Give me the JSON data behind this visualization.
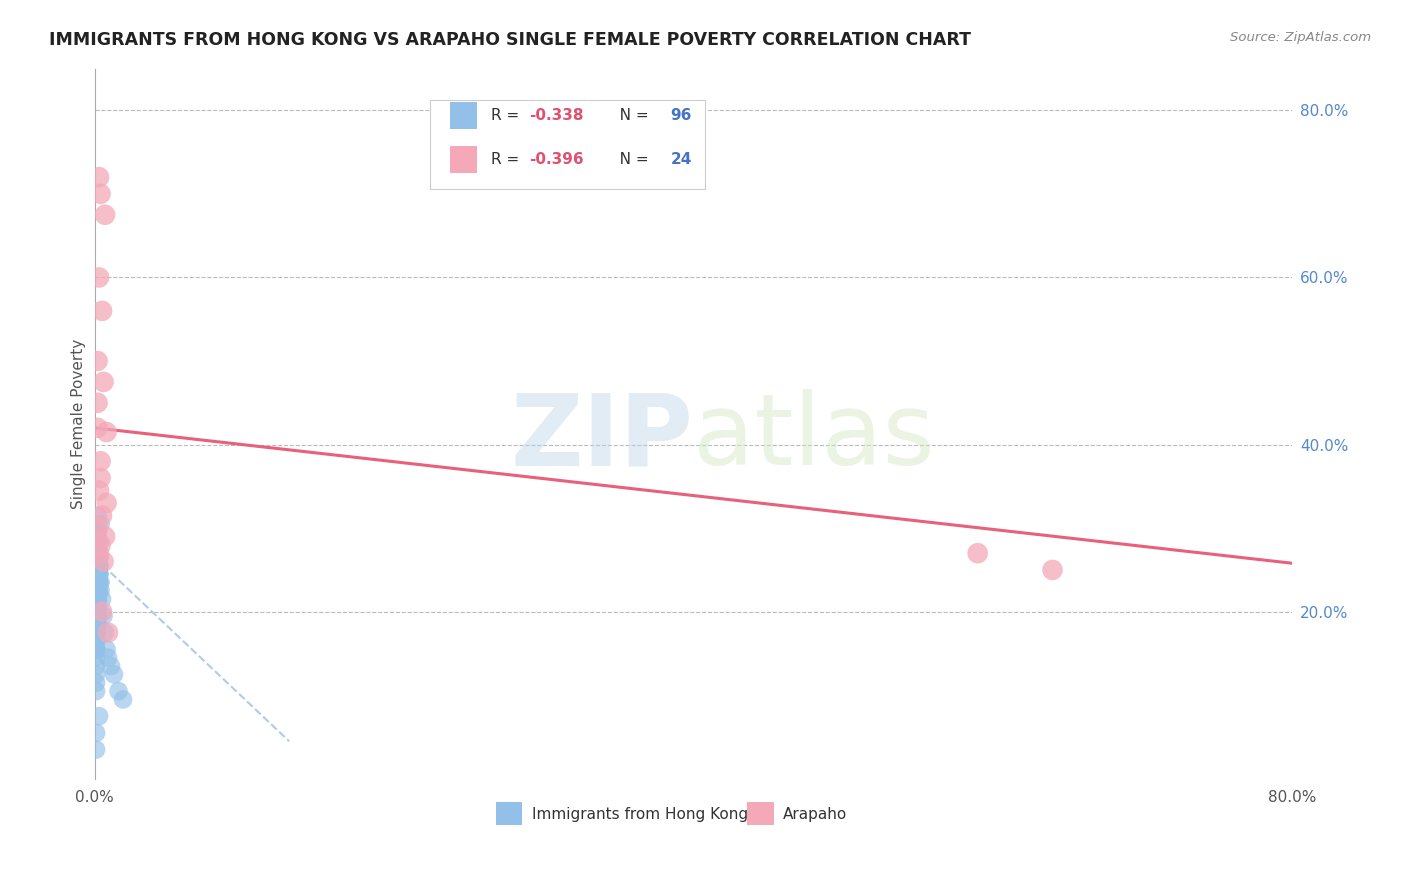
{
  "title": "IMMIGRANTS FROM HONG KONG VS ARAPAHO SINGLE FEMALE POVERTY CORRELATION CHART",
  "source": "Source: ZipAtlas.com",
  "ylabel": "Single Female Poverty",
  "right_yticks": [
    "20.0%",
    "40.0%",
    "60.0%",
    "80.0%"
  ],
  "right_ytick_vals": [
    0.2,
    0.4,
    0.6,
    0.8
  ],
  "watermark_zip": "ZIP",
  "watermark_atlas": "atlas",
  "blue_color": "#92C0E8",
  "pink_color": "#F4A8B8",
  "pink_line_color": "#E8607A",
  "blue_dash_color": "#B0CCE8",
  "background": "#FFFFFF",
  "blue_scatter_x": [
    0.001,
    0.002,
    0.001,
    0.003,
    0.002,
    0.001,
    0.002,
    0.004,
    0.002,
    0.002,
    0.001,
    0.001,
    0.002,
    0.001,
    0.003,
    0.003,
    0.002,
    0.001,
    0.001,
    0.003,
    0.004,
    0.002,
    0.001,
    0.003,
    0.002,
    0.002,
    0.001,
    0.001,
    0.002,
    0.003,
    0.003,
    0.001,
    0.002,
    0.003,
    0.001,
    0.001,
    0.002,
    0.001,
    0.003,
    0.002,
    0.001,
    0.001,
    0.002,
    0.003,
    0.001,
    0.002,
    0.001,
    0.001,
    0.003,
    0.002,
    0.001,
    0.001,
    0.002,
    0.001,
    0.003,
    0.001,
    0.002,
    0.001,
    0.001,
    0.003,
    0.002,
    0.001,
    0.001,
    0.002,
    0.003,
    0.001,
    0.002,
    0.003,
    0.001,
    0.002,
    0.003,
    0.001,
    0.002,
    0.001,
    0.001,
    0.003,
    0.002,
    0.001,
    0.001,
    0.002,
    0.004,
    0.005,
    0.006,
    0.007,
    0.008,
    0.009,
    0.011,
    0.013,
    0.016,
    0.019,
    0.002,
    0.003,
    0.001,
    0.001,
    0.002,
    0.001
  ],
  "blue_scatter_y": [
    0.275,
    0.295,
    0.245,
    0.265,
    0.255,
    0.235,
    0.285,
    0.305,
    0.215,
    0.225,
    0.195,
    0.205,
    0.185,
    0.275,
    0.255,
    0.245,
    0.265,
    0.215,
    0.175,
    0.235,
    0.225,
    0.295,
    0.275,
    0.245,
    0.255,
    0.215,
    0.195,
    0.185,
    0.205,
    0.265,
    0.235,
    0.225,
    0.245,
    0.255,
    0.215,
    0.175,
    0.195,
    0.205,
    0.285,
    0.275,
    0.165,
    0.185,
    0.215,
    0.245,
    0.195,
    0.225,
    0.155,
    0.175,
    0.265,
    0.235,
    0.205,
    0.145,
    0.215,
    0.185,
    0.255,
    0.195,
    0.225,
    0.135,
    0.165,
    0.245,
    0.215,
    0.185,
    0.125,
    0.205,
    0.235,
    0.175,
    0.195,
    0.255,
    0.155,
    0.215,
    0.245,
    0.165,
    0.205,
    0.115,
    0.155,
    0.225,
    0.195,
    0.175,
    0.105,
    0.185,
    0.235,
    0.215,
    0.195,
    0.175,
    0.155,
    0.145,
    0.135,
    0.125,
    0.105,
    0.095,
    0.275,
    0.075,
    0.055,
    0.035,
    0.315,
    0.295
  ],
  "pink_scatter_x": [
    0.003,
    0.004,
    0.007,
    0.003,
    0.005,
    0.002,
    0.006,
    0.002,
    0.008,
    0.004,
    0.003,
    0.008,
    0.005,
    0.002,
    0.007,
    0.004,
    0.003,
    0.006,
    0.009,
    0.005,
    0.59,
    0.64,
    0.002,
    0.004
  ],
  "pink_scatter_y": [
    0.72,
    0.7,
    0.675,
    0.6,
    0.56,
    0.5,
    0.475,
    0.45,
    0.415,
    0.38,
    0.345,
    0.33,
    0.315,
    0.3,
    0.29,
    0.28,
    0.27,
    0.26,
    0.175,
    0.2,
    0.27,
    0.25,
    0.42,
    0.36
  ],
  "blue_trend_x": [
    0.0,
    0.13
  ],
  "blue_trend_y": [
    0.265,
    0.045
  ],
  "pink_trend_x": [
    0.0,
    0.8
  ],
  "pink_trend_y": [
    0.42,
    0.258
  ],
  "xlim": [
    0.0,
    0.8
  ],
  "ylim": [
    0.0,
    0.85
  ],
  "legend_r1": "-0.338",
  "legend_n1": "96",
  "legend_r2": "-0.396",
  "legend_n2": "24"
}
